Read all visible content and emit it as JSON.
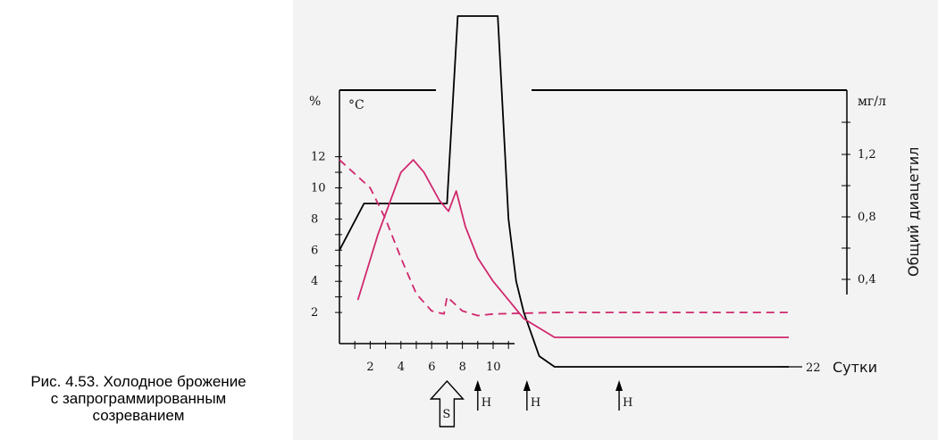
{
  "caption": {
    "line1": "Рис. 4.53. Холодное брожение",
    "line2": "с запрограммированным",
    "line3": "созреванием"
  },
  "chart_data": {
    "type": "line",
    "left_unit": "%",
    "left_unit2": "°C",
    "right_unit": "мг/л",
    "right_axis_label": "Общий диацетил",
    "x_axis_label": "Сутки",
    "x_ticks": [
      "2",
      "4",
      "6",
      "8",
      "10",
      "22"
    ],
    "left_ticks": [
      "2",
      "4",
      "6",
      "8",
      "10",
      "12"
    ],
    "right_ticks": [
      "0,4",
      "0,8",
      "1,2"
    ],
    "markers": [
      {
        "label": "S",
        "x": 7,
        "kind": "hollow-arrow"
      },
      {
        "label": "H",
        "x": 9,
        "kind": "arrow"
      },
      {
        "label": "H",
        "x": 12.2,
        "kind": "arrow"
      },
      {
        "label": "H",
        "x": 18.2,
        "kind": "arrow"
      }
    ],
    "colors": {
      "axis": "#000000",
      "curve": "#d0286e"
    },
    "series": [
      {
        "color": "#000000",
        "style": "solid",
        "x": [
          0,
          1.6,
          7,
          7.7,
          10.3,
          11,
          11.5,
          12,
          13,
          14,
          22
        ],
        "y": [
          6,
          9,
          9,
          26,
          26,
          8,
          4,
          2,
          0.7,
          0,
          0
        ]
      },
      {
        "color": "#d0286e",
        "style": "solid",
        "x": [
          1.2,
          2.5,
          4,
          4.8,
          5.5,
          6.5,
          7.1,
          7.6,
          8.2,
          9,
          10,
          11,
          12,
          14,
          22
        ],
        "y": [
          2.8,
          7,
          11,
          11.8,
          11,
          9.2,
          8.5,
          9.8,
          7.5,
          5.5,
          4,
          2.8,
          1.6,
          0.4,
          0.4
        ]
      },
      {
        "color": "#d0286e",
        "style": "dashed",
        "x": [
          0,
          2,
          3,
          4,
          5,
          6,
          6.8,
          7,
          8,
          9,
          10,
          14,
          22
        ],
        "y": [
          11.8,
          10,
          8,
          5.5,
          3.2,
          2.1,
          1.9,
          3,
          2.1,
          1.8,
          1.9,
          2,
          2
        ]
      }
    ]
  }
}
